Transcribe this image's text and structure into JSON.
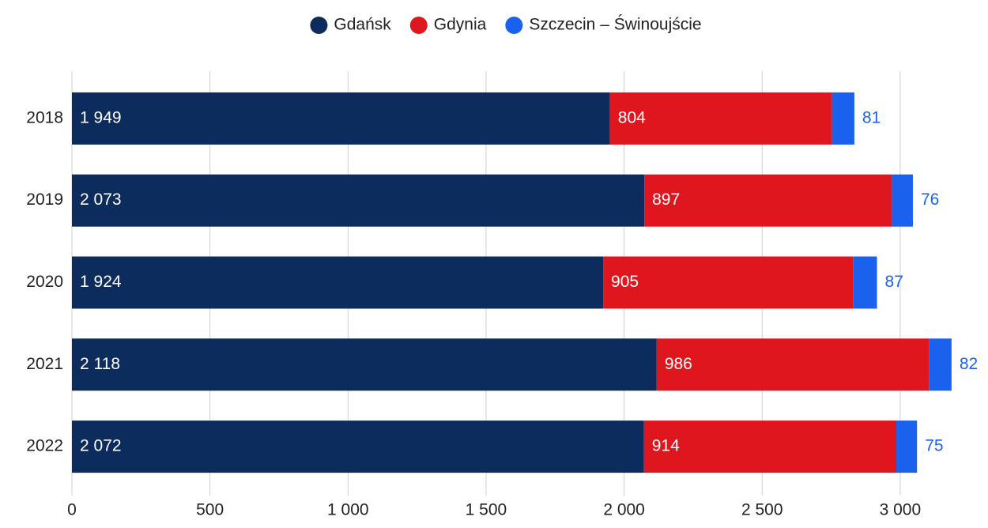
{
  "chart_data": {
    "type": "stacked_barh",
    "categories": [
      "2018",
      "2019",
      "2020",
      "2021",
      "2022"
    ],
    "series": [
      {
        "name": "Gdańsk",
        "color": "#0d2c5e",
        "values": [
          1949,
          2073,
          1924,
          2118,
          2072
        ],
        "value_labels": [
          "1 949",
          "2 073",
          "1 924",
          "2 118",
          "2 072"
        ]
      },
      {
        "name": "Gdynia",
        "color": "#e0161e",
        "values": [
          804,
          897,
          905,
          986,
          914
        ]
      },
      {
        "name": "Szczecin – Świnoujście",
        "color": "#1a62ee",
        "values": [
          81,
          76,
          87,
          82,
          75
        ]
      }
    ],
    "xlim": [
      0,
      3300
    ],
    "xticks": [
      0,
      500,
      {
        "value": 1000,
        "label": "1 000"
      },
      {
        "value": 1500,
        "label": "1 500"
      },
      {
        "value": 2000,
        "label": "2 000"
      },
      {
        "value": 2500,
        "label": "2 500"
      },
      {
        "value": 3000,
        "label": "3 000"
      }
    ],
    "grid": true,
    "legend": "top"
  }
}
